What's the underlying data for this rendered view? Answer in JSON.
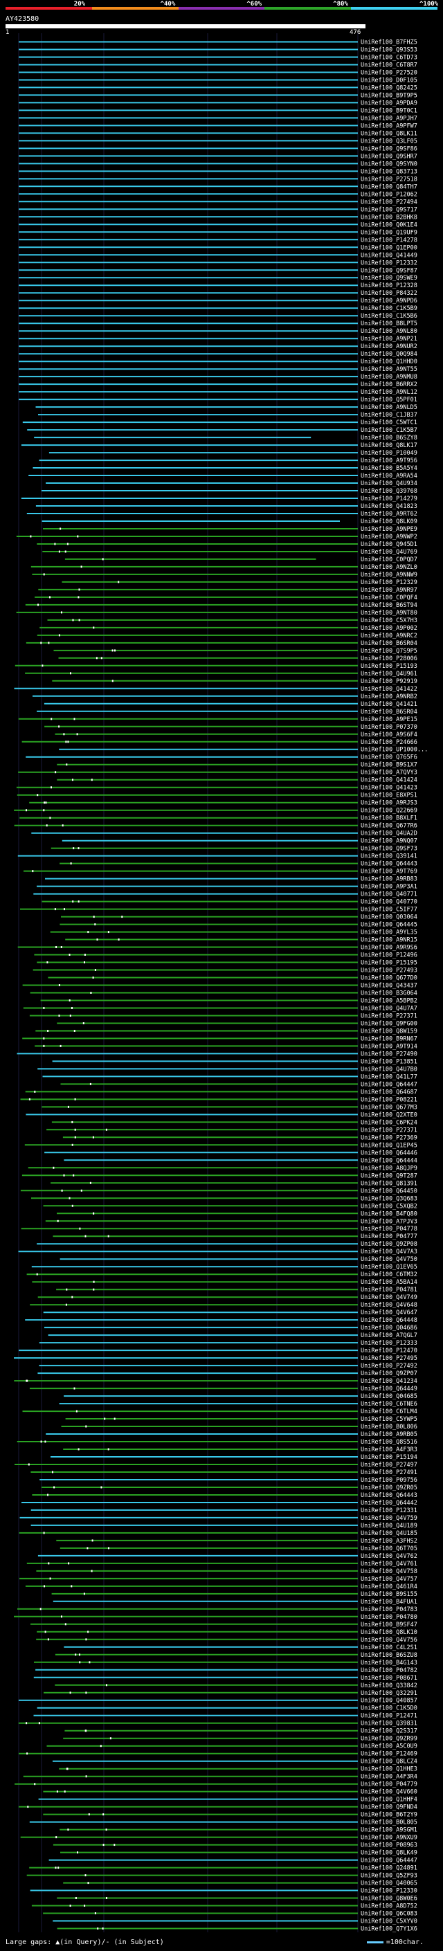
{
  "legend": {
    "segments": [
      {
        "label": "20%",
        "color": "#e8202a"
      },
      {
        "label": "^40%",
        "color": "#f28c1c"
      },
      {
        "label": "^60%",
        "color": "#8a2fb0"
      },
      {
        "label": "^80%",
        "color": "#2ea62a"
      },
      {
        "label": "^100%",
        "color": "#3fd0f0"
      }
    ]
  },
  "query": {
    "id": "AY423580",
    "start": "1",
    "end": "476"
  },
  "hits": [
    "UniRef100_B7FHZ5",
    "UniRef100_Q93S53",
    "UniRef100_C6TD73",
    "UniRef100_C6T8R7",
    "UniRef100_P27520",
    "UniRef100_D0F105",
    "UniRef100_Q82425",
    "UniRef100_B9T9P5",
    "UniRef100_A9PDA9",
    "UniRef100_B9T0C1",
    "UniRef100_A9PJH7",
    "UniRef100_A9PFW7",
    "UniRef100_Q8LK11",
    "UniRef100_Q3LF05",
    "UniRef100_Q9SF86",
    "UniRef100_Q9SHR7",
    "UniRef100_Q9SYN0",
    "UniRef100_Q83713",
    "UniRef100_P27518",
    "UniRef100_Q84TH7",
    "UniRef100_P12062",
    "UniRef100_P27494",
    "UniRef100_Q9S717",
    "UniRef100_B2BHK8",
    "UniRef100_Q0K1E4",
    "UniRef100_Q19UF9",
    "UniRef100_P14278",
    "UniRef100_Q1EP00",
    "UniRef100_Q41449",
    "UniRef100_P12332",
    "UniRef100_Q9SF87",
    "UniRef100_Q9SWE9",
    "UniRef100_P12328",
    "UniRef100_P84322",
    "UniRef100_A9NPD6",
    "UniRef100_C1K5B9",
    "UniRef100_C1K5B6",
    "UniRef100_B8LPT5",
    "UniRef100_A9NL80",
    "UniRef100_A9NP21",
    "UniRef100_A9NUR2",
    "UniRef100_Q0Q984",
    "UniRef100_Q1HHD0",
    "UniRef100_A9NT55",
    "UniRef100_A9NMU8",
    "UniRef100_B6RRX2",
    "UniRef100_A9NL12",
    "UniRef100_Q5PF01",
    "UniRef100_A9NLD5",
    "UniRef100_C1JB37",
    "UniRef100_C5WTC1",
    "UniRef100_C1K5B7",
    "UniRef100_B6SZY8",
    "UniRef100_Q8LK17",
    "UniRef100_P10049",
    "UniRef100_A9T956",
    "UniRef100_B5A5Y4",
    "UniRef100_A9RA54",
    "UniRef100_Q4U934",
    "UniRef100_Q39768",
    "UniRef100_P14279",
    "UniRef100_Q41823",
    "UniRef100_A9RT62",
    "UniRef100_Q8LK09",
    "UniRef100_A9NPE9",
    "UniRef100_A9NWP2",
    "UniRef100_Q945D1",
    "UniRef100_Q4U769",
    "UniRef100_C0PQD7",
    "UniRef100_A9NZL0",
    "UniRef100_A9NNW9",
    "UniRef100_P12329",
    "UniRef100_A9NR97",
    "UniRef100_C0PQF4",
    "UniRef100_B6ST94",
    "UniRef100_A9NT80",
    "UniRef100_C5X7H3",
    "UniRef100_A9P002",
    "UniRef100_A9NRC2",
    "UniRef100_B6SR04",
    "UniRef100_Q7S9P5",
    "UniRef100_P28006",
    "UniRef100_P15193",
    "UniRef100_Q4U961",
    "UniRef100_P92919",
    "UniRef100_Q41422",
    "UniRef100_A9NRB2",
    "UniRef100_Q41421",
    "UniRef100_B6SR04",
    "UniRef100_A9PE15",
    "UniRef100_P07370",
    "UniRef100_A9S6F4",
    "UniRef100_P24666",
    "UniRef100_UP1000...",
    "UniRef100_Q765F6",
    "UniRef100_B9S1X7",
    "UniRef100_A7QVY3",
    "UniRef100_Q41424",
    "UniRef100_Q41423",
    "UniRef100_E8XPS1",
    "UniRef100_A9RJS3",
    "UniRef100_Q22669",
    "UniRef100_B8XLF1",
    "UniRef100_Q677R6",
    "UniRef100_Q4UA2D",
    "UniRef100_A9NQ07",
    "UniRef100_Q9SF73",
    "UniRef100_Q39141",
    "UniRef100_Q64443",
    "UniRef100_A9T769",
    "UniRef100_A9RB83",
    "UniRef100_A9P3A1",
    "UniRef100_Q40771",
    "UniRef100_Q40770",
    "UniRef100_C5IF77",
    "UniRef100_Q03064",
    "UniRef100_Q64445",
    "UniRef100_A9YL35",
    "UniRef100_A9NR15",
    "UniRef100_A9R9S6",
    "UniRef100_P12496",
    "UniRef100_P15195",
    "UniRef100_P27493",
    "UniRef100_Q677D0",
    "UniRef100_Q43437",
    "UniRef100_B3G064",
    "UniRef100_A5BPB2",
    "UniRef100_Q4U7A7",
    "UniRef100_P27371",
    "UniRef100_Q9FG00",
    "UniRef100_Q8W159",
    "UniRef100_B9RN67",
    "UniRef100_A9T914",
    "UniRef100_P27490",
    "UniRef100_P13851",
    "UniRef100_Q4U7B0",
    "UniRef100_Q41L77",
    "UniRef100_Q64447",
    "UniRef100_Q64687",
    "UniRef100_P08221",
    "UniRef100_Q677M3",
    "UniRef100_Q2XTE0",
    "UniRef100_C6PK24",
    "UniRef100_P27371",
    "UniRef100_P27369",
    "UniRef100_Q1EP45",
    "UniRef100_Q64446",
    "UniRef100_Q64444",
    "UniRef100_A8QJP9",
    "UniRef100_Q9T287",
    "UniRef100_Q81391",
    "UniRef100_Q64450",
    "UniRef100_Q3Q683",
    "UniRef100_C5XQB2",
    "UniRef100_B4FQ80",
    "UniRef100_A7PJV3",
    "UniRef100_P04778",
    "UniRef100_P04777",
    "UniRef100_Q9ZP08",
    "UniRef100_Q4V7A3",
    "UniRef100_Q4V750",
    "UniRef100_Q1EV65",
    "UniRef100_C6TM32",
    "UniRef100_A5BA14",
    "UniRef100_P04781",
    "UniRef100_Q4V749",
    "UniRef100_Q4V648",
    "UniRef100_Q4V647",
    "UniRef100_Q64448",
    "UniRef100_Q04686",
    "UniRef100_A7QGL7",
    "UniRef100_P12333",
    "UniRef100_P12470",
    "UniRef100_P27495",
    "UniRef100_P27492",
    "UniRef100_Q9ZP07",
    "UniRef100_Q41234",
    "UniRef100_Q64449",
    "UniRef100_Q04685",
    "UniRef100_C6TNE6",
    "UniRef100_C6TLM4",
    "UniRef100_C5YWP5",
    "UniRef100_B0L806",
    "UniRef100_A9RB05",
    "UniRef100_Q8S516",
    "UniRef100_A4F3R3",
    "UniRef100_P15194",
    "UniRef100_P27497",
    "UniRef100_P27491",
    "UniRef100_P09756",
    "UniRef100_Q9ZR05",
    "UniRef100_Q64443",
    "UniRef100_Q64442",
    "UniRef100_P12331",
    "UniRef100_Q4V759",
    "UniRef100_Q4U189",
    "UniRef100_Q4U185",
    "UniRef100_A3FHS2",
    "UniRef100_Q6T705",
    "UniRef100_Q4V762",
    "UniRef100_Q4V761",
    "UniRef100_Q4V758",
    "UniRef100_Q4V757",
    "UniRef100_Q461R4",
    "UniRef100_B9S155",
    "UniRef100_B4FUA1",
    "UniRef100_P04783",
    "UniRef100_P04780",
    "UniRef100_B9SF47",
    "UniRef100_Q8LK10",
    "UniRef100_Q4V756",
    "UniRef100_C4L2S1",
    "UniRef100_B6SZU8",
    "UniRef100_B4G143",
    "UniRef100_P04782",
    "UniRef100_P08671",
    "UniRef100_Q33842",
    "UniRef100_Q32291",
    "UniRef100_Q40857",
    "UniRef100_C1K5D0",
    "UniRef100_P12471",
    "UniRef100_Q39831",
    "UniRef100_Q2S317",
    "UniRef100_Q9ZR99",
    "UniRef100_A5C0U9",
    "UniRef100_P12469",
    "UniRef100_Q8LCZ4",
    "UniRef100_Q1HHE3",
    "UniRef100_A4F3R4",
    "UniRef100_P04779",
    "UniRef100_Q4V660",
    "UniRef100_Q1HHF4",
    "UniRef100_Q9FND4",
    "UniRef100_B6T2Y9",
    "UniRef100_B0L805",
    "UniRef100_A9SGM1",
    "UniRef100_A9NXU9",
    "UniRef100_P08963",
    "UniRef100_Q8LK49",
    "UniRef100_Q64447",
    "UniRef100_Q24891",
    "UniRef100_Q5ZF93",
    "UniRef100_Q40065",
    "UniRef100_P12330",
    "UniRef100_Q8W0E6",
    "UniRef100_A8D752",
    "UniRef100_Q6C083",
    "UniRef100_C5XYV0",
    "UniRef100_Q7Y1X6"
  ],
  "footer": {
    "gaps_text": "Large gaps: ▲(in Query)/- (in Subject)",
    "scale_text": "=100char."
  }
}
